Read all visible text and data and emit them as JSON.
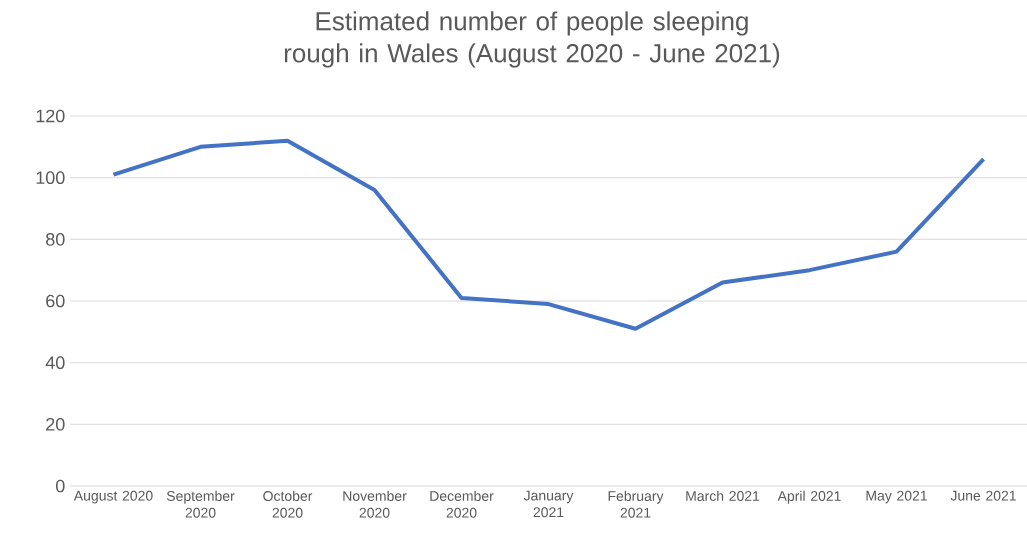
{
  "chart_data": {
    "type": "line",
    "title": "Estimated number of people sleeping rough in Wales (August 2020 - June 2021)",
    "categories": [
      "August 2020",
      "September 2020",
      "October 2020",
      "November 2020",
      "December 2020",
      "January 2021",
      "February 2021",
      "March 2021",
      "April 2021",
      "May 2021",
      "June 2021"
    ],
    "values": [
      101,
      110,
      112,
      96,
      61,
      59,
      51,
      66,
      70,
      76,
      106
    ],
    "color": "#4472c4",
    "ylim": [
      0,
      120
    ],
    "yticks": [
      0,
      20,
      40,
      60,
      80,
      100,
      120
    ],
    "grid": "y"
  }
}
